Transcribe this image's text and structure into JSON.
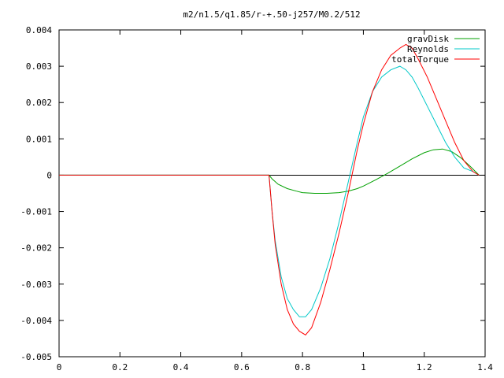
{
  "chart_data": {
    "type": "line",
    "title": "m2/n1.5/q1.85/r-+.50-j257/M0.2/512",
    "xlabel": "",
    "ylabel": "",
    "xlim": [
      0,
      1.4
    ],
    "ylim": [
      -0.005,
      0.004
    ],
    "x_ticks": [
      "0",
      "0.2",
      "0.4",
      "0.6",
      "0.8",
      "1",
      "1.2",
      "1.4"
    ],
    "y_ticks": [
      "0.004",
      "0.003",
      "0.002",
      "0.001",
      "0",
      "-0.001",
      "-0.002",
      "-0.003",
      "-0.004",
      "-0.005"
    ],
    "grid": false,
    "legend_position": "top-right",
    "series": [
      {
        "name": "gravDisk",
        "color": "#00a000",
        "x": [
          0,
          0.69,
          0.7,
          0.72,
          0.75,
          0.78,
          0.8,
          0.84,
          0.88,
          0.92,
          0.95,
          0.98,
          1.0,
          1.04,
          1.08,
          1.12,
          1.16,
          1.2,
          1.23,
          1.26,
          1.29,
          1.32,
          1.35,
          1.38
        ],
        "values": [
          0,
          0,
          -0.0001,
          -0.00025,
          -0.00037,
          -0.00044,
          -0.00048,
          -0.0005,
          -0.0005,
          -0.00048,
          -0.00044,
          -0.00037,
          -0.0003,
          -0.00013,
          5e-05,
          0.00025,
          0.00045,
          0.00062,
          0.0007,
          0.00072,
          0.00065,
          0.00048,
          0.00025,
          0
        ]
      },
      {
        "name": "Reynolds",
        "color": "#00c8c8",
        "x": [
          0,
          0.69,
          0.7,
          0.71,
          0.73,
          0.75,
          0.77,
          0.79,
          0.81,
          0.83,
          0.86,
          0.89,
          0.92,
          0.95,
          0.98,
          1.0,
          1.03,
          1.06,
          1.09,
          1.12,
          1.14,
          1.16,
          1.18,
          1.21,
          1.24,
          1.27,
          1.3,
          1.33,
          1.36,
          1.38
        ],
        "values": [
          0,
          0,
          -0.001,
          -0.0018,
          -0.0028,
          -0.0034,
          -0.0037,
          -0.0039,
          -0.0039,
          -0.0037,
          -0.0031,
          -0.0023,
          -0.0013,
          -0.0002,
          0.0009,
          0.0016,
          0.0023,
          0.0027,
          0.0029,
          0.003,
          0.0029,
          0.0027,
          0.0024,
          0.0019,
          0.0014,
          0.0009,
          0.0005,
          0.0002,
          0.0001,
          0
        ]
      },
      {
        "name": "totalTorque",
        "color": "#ff0000",
        "x": [
          0,
          0.69,
          0.7,
          0.71,
          0.73,
          0.75,
          0.77,
          0.79,
          0.81,
          0.83,
          0.86,
          0.89,
          0.92,
          0.95,
          0.98,
          1.0,
          1.03,
          1.06,
          1.09,
          1.12,
          1.14,
          1.16,
          1.18,
          1.21,
          1.24,
          1.27,
          1.3,
          1.33,
          1.36,
          1.38
        ],
        "values": [
          0,
          0,
          -0.001,
          -0.0019,
          -0.003,
          -0.0037,
          -0.0041,
          -0.0043,
          -0.0044,
          -0.0042,
          -0.0035,
          -0.0026,
          -0.0016,
          -0.0005,
          0.0007,
          0.0014,
          0.0023,
          0.0029,
          0.0033,
          0.0035,
          0.0036,
          0.0035,
          0.0032,
          0.0027,
          0.0021,
          0.0015,
          0.0009,
          0.0004,
          0.0001,
          0
        ]
      }
    ]
  }
}
